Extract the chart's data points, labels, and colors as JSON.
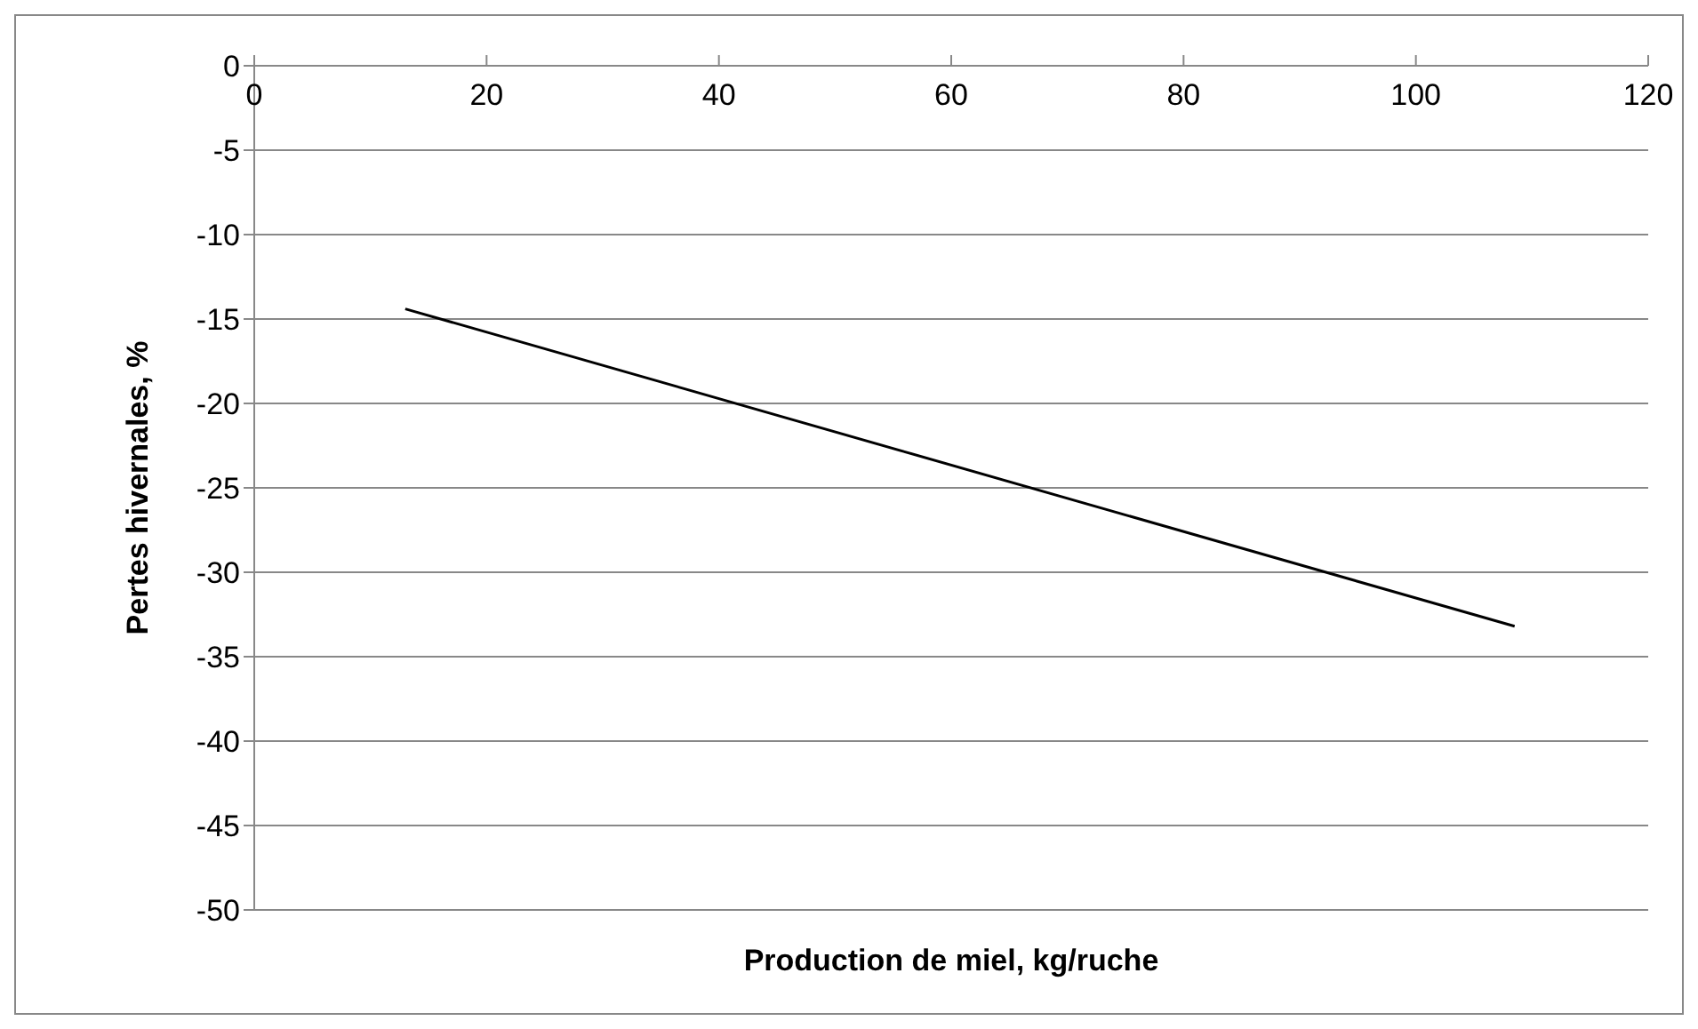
{
  "chart_data": {
    "type": "line",
    "xlabel": "Production de miel, kg/ruche",
    "ylabel": "Pertes hivernales, %",
    "x": [
      13,
      108.5
    ],
    "series": [
      {
        "color": "#000000",
        "values": [
          -14.4,
          -33.2
        ]
      }
    ],
    "xlim": [
      0,
      120
    ],
    "xticks": [
      0,
      20,
      40,
      60,
      80,
      100,
      120
    ],
    "ylim": [
      -50,
      0
    ],
    "yticks": [
      0,
      -5,
      -10,
      -15,
      -20,
      -25,
      -30,
      -35,
      -40,
      -45,
      -50
    ],
    "grid": "y",
    "legend": false,
    "marker": "none",
    "line_style": "solid"
  }
}
